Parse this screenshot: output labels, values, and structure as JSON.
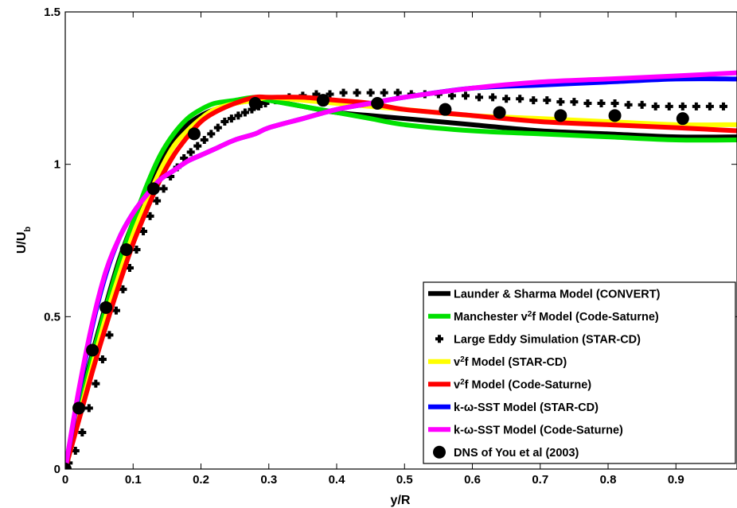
{
  "chart_data": {
    "type": "line",
    "xlabel": "y/R",
    "ylabel_main": "U/U",
    "ylabel_sub": "b",
    "xlim": [
      0,
      0.99
    ],
    "ylim": [
      0,
      1.5
    ],
    "x_ticks": [
      0,
      0.1,
      0.2,
      0.3,
      0.4,
      0.5,
      0.6,
      0.7,
      0.8,
      0.9
    ],
    "x_tick_labels": [
      "0",
      "0.1",
      "0.2",
      "0.3",
      "0.4",
      "0.5",
      "0.6",
      "0.7",
      "0.8",
      "0.9"
    ],
    "y_ticks": [
      0,
      0.5,
      1,
      1.5
    ],
    "y_tick_labels": [
      "0",
      "0.5",
      "1",
      "1.5"
    ],
    "grid": false,
    "legend_position": "bottom-right",
    "series": [
      {
        "name": "Launder & Sharma Model (CONVERT)",
        "color": "#000000",
        "style": "line",
        "x": [
          0,
          0.02,
          0.04,
          0.06,
          0.08,
          0.1,
          0.12,
          0.14,
          0.16,
          0.18,
          0.2,
          0.22,
          0.25,
          0.28,
          0.3,
          0.35,
          0.4,
          0.45,
          0.5,
          0.6,
          0.7,
          0.8,
          0.9,
          0.99
        ],
        "y": [
          0,
          0.2,
          0.38,
          0.54,
          0.69,
          0.81,
          0.92,
          1.01,
          1.08,
          1.13,
          1.16,
          1.18,
          1.2,
          1.21,
          1.21,
          1.19,
          1.17,
          1.16,
          1.15,
          1.13,
          1.11,
          1.1,
          1.09,
          1.09
        ]
      },
      {
        "name": "Manchester v²f Model (Code-Saturne)",
        "name_prefix": "Manchester v",
        "name_sup": "2",
        "name_suffix": "f Model (Code-Saturne)",
        "color": "#00e000",
        "style": "line",
        "x": [
          0,
          0.02,
          0.04,
          0.06,
          0.08,
          0.1,
          0.12,
          0.14,
          0.16,
          0.18,
          0.2,
          0.22,
          0.25,
          0.28,
          0.3,
          0.35,
          0.4,
          0.45,
          0.5,
          0.6,
          0.7,
          0.8,
          0.9,
          0.99
        ],
        "y": [
          0,
          0.19,
          0.37,
          0.53,
          0.68,
          0.81,
          0.93,
          1.03,
          1.1,
          1.15,
          1.18,
          1.2,
          1.21,
          1.22,
          1.21,
          1.19,
          1.17,
          1.15,
          1.13,
          1.11,
          1.1,
          1.09,
          1.08,
          1.08
        ]
      },
      {
        "name": "Large Eddy Simulation (STAR-CD)",
        "color": "#000000",
        "style": "plus",
        "x": [
          0.005,
          0.015,
          0.025,
          0.035,
          0.045,
          0.055,
          0.065,
          0.075,
          0.085,
          0.095,
          0.105,
          0.115,
          0.125,
          0.135,
          0.145,
          0.155,
          0.165,
          0.175,
          0.185,
          0.195,
          0.205,
          0.215,
          0.225,
          0.235,
          0.245,
          0.255,
          0.265,
          0.275,
          0.285,
          0.295,
          0.31,
          0.33,
          0.35,
          0.37,
          0.39,
          0.41,
          0.43,
          0.45,
          0.47,
          0.49,
          0.51,
          0.53,
          0.55,
          0.57,
          0.59,
          0.61,
          0.63,
          0.65,
          0.67,
          0.69,
          0.71,
          0.73,
          0.75,
          0.77,
          0.79,
          0.81,
          0.83,
          0.85,
          0.87,
          0.89,
          0.91,
          0.93,
          0.95,
          0.97
        ],
        "y": [
          0.02,
          0.06,
          0.12,
          0.2,
          0.28,
          0.36,
          0.44,
          0.52,
          0.59,
          0.66,
          0.72,
          0.78,
          0.83,
          0.88,
          0.92,
          0.96,
          0.99,
          1.02,
          1.04,
          1.06,
          1.08,
          1.1,
          1.12,
          1.14,
          1.15,
          1.16,
          1.17,
          1.18,
          1.19,
          1.2,
          1.21,
          1.22,
          1.225,
          1.23,
          1.23,
          1.235,
          1.235,
          1.235,
          1.235,
          1.235,
          1.23,
          1.23,
          1.23,
          1.225,
          1.225,
          1.22,
          1.22,
          1.215,
          1.215,
          1.21,
          1.21,
          1.205,
          1.205,
          1.2,
          1.2,
          1.2,
          1.195,
          1.195,
          1.19,
          1.19,
          1.19,
          1.19,
          1.19,
          1.19
        ]
      },
      {
        "name": "v²f Model (STAR-CD)",
        "name_prefix": "v",
        "name_sup": "2",
        "name_suffix": "f Model (STAR-CD)",
        "color": "#ffff00",
        "style": "line",
        "x": [
          0,
          0.02,
          0.04,
          0.06,
          0.08,
          0.1,
          0.12,
          0.14,
          0.16,
          0.18,
          0.2,
          0.22,
          0.25,
          0.28,
          0.3,
          0.35,
          0.4,
          0.45,
          0.5,
          0.6,
          0.7,
          0.8,
          0.9,
          0.99
        ],
        "y": [
          0,
          0.17,
          0.34,
          0.5,
          0.64,
          0.77,
          0.88,
          0.98,
          1.06,
          1.11,
          1.15,
          1.18,
          1.2,
          1.21,
          1.22,
          1.21,
          1.2,
          1.19,
          1.18,
          1.16,
          1.15,
          1.14,
          1.13,
          1.13
        ]
      },
      {
        "name": "v²f Model (Code-Saturne)",
        "name_prefix": "v",
        "name_sup": "2",
        "name_suffix": "f Model (Code-Saturne)",
        "color": "#ff0000",
        "style": "line",
        "x": [
          0,
          0.02,
          0.04,
          0.06,
          0.08,
          0.1,
          0.12,
          0.14,
          0.16,
          0.18,
          0.2,
          0.22,
          0.25,
          0.28,
          0.3,
          0.35,
          0.4,
          0.45,
          0.5,
          0.6,
          0.7,
          0.8,
          0.9,
          0.99
        ],
        "y": [
          0,
          0.16,
          0.32,
          0.47,
          0.61,
          0.74,
          0.85,
          0.95,
          1.03,
          1.09,
          1.14,
          1.17,
          1.2,
          1.22,
          1.22,
          1.22,
          1.21,
          1.2,
          1.18,
          1.16,
          1.14,
          1.13,
          1.12,
          1.11
        ]
      },
      {
        "name": "k-ω-SST Model (STAR-CD)",
        "color": "#0000ff",
        "style": "line",
        "x": [
          0,
          0.02,
          0.04,
          0.06,
          0.08,
          0.1,
          0.12,
          0.14,
          0.16,
          0.18,
          0.2,
          0.22,
          0.25,
          0.28,
          0.3,
          0.35,
          0.4,
          0.45,
          0.5,
          0.6,
          0.7,
          0.8,
          0.9,
          0.99
        ],
        "y": [
          0,
          0.25,
          0.47,
          0.64,
          0.76,
          0.84,
          0.9,
          0.95,
          0.98,
          1.01,
          1.03,
          1.05,
          1.08,
          1.1,
          1.12,
          1.15,
          1.18,
          1.2,
          1.22,
          1.25,
          1.26,
          1.27,
          1.28,
          1.28
        ]
      },
      {
        "name": "k-ω-SST Model (Code-Saturne)",
        "color": "#ff00ff",
        "style": "line",
        "x": [
          0,
          0.02,
          0.04,
          0.06,
          0.08,
          0.1,
          0.12,
          0.14,
          0.16,
          0.18,
          0.2,
          0.22,
          0.25,
          0.28,
          0.3,
          0.35,
          0.4,
          0.45,
          0.5,
          0.6,
          0.7,
          0.8,
          0.9,
          0.99
        ],
        "y": [
          0,
          0.26,
          0.48,
          0.65,
          0.76,
          0.84,
          0.9,
          0.95,
          0.98,
          1.01,
          1.03,
          1.05,
          1.08,
          1.1,
          1.12,
          1.15,
          1.18,
          1.2,
          1.22,
          1.25,
          1.27,
          1.28,
          1.29,
          1.3
        ]
      },
      {
        "name": "DNS of You et al (2003)",
        "color": "#000000",
        "style": "dot",
        "x": [
          0,
          0.02,
          0.04,
          0.06,
          0.09,
          0.13,
          0.19,
          0.28,
          0.38,
          0.46,
          0.56,
          0.64,
          0.73,
          0.81,
          0.91
        ],
        "y": [
          0,
          0.2,
          0.39,
          0.53,
          0.72,
          0.92,
          1.1,
          1.2,
          1.21,
          1.2,
          1.18,
          1.17,
          1.16,
          1.16,
          1.15
        ]
      }
    ],
    "legend": [
      {
        "text": "Launder & Sharma Model (CONVERT)",
        "sample": "line",
        "color": "#000000"
      },
      {
        "text_prefix": "Manchester v",
        "text_sup": "2",
        "text_suffix": "f Model (Code-Saturne)",
        "sample": "line",
        "color": "#00e000"
      },
      {
        "text": "Large Eddy Simulation (STAR-CD)",
        "sample": "plus",
        "color": "#000000"
      },
      {
        "text_prefix": "v",
        "text_sup": "2",
        "text_suffix": "f Model (STAR-CD)",
        "sample": "line",
        "color": "#ffff00"
      },
      {
        "text_prefix": "v",
        "text_sup": "2",
        "text_suffix": "f Model (Code-Saturne)",
        "sample": "line",
        "color": "#ff0000"
      },
      {
        "text": "k-ω-SST Model (STAR-CD)",
        "sample": "line",
        "color": "#0000ff"
      },
      {
        "text": "k-ω-SST Model (Code-Saturne)",
        "sample": "line",
        "color": "#ff00ff"
      },
      {
        "text": "DNS of You et al (2003)",
        "sample": "dot",
        "color": "#000000"
      }
    ]
  }
}
